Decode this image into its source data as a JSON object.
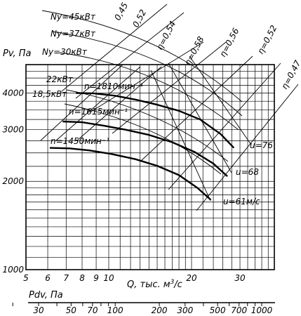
{
  "chart_data": {
    "type": "line",
    "title": "",
    "ylabel": "Pv, Па",
    "xlabel": "Q, тыс. м³/с",
    "xlabel_parts": {
      "main": "Q, тыс. м",
      "sup": "3",
      "tail": "/с"
    },
    "x_scale": "log",
    "y_scale": "log",
    "xlim": [
      5,
      40
    ],
    "ylim": [
      1000,
      5000
    ],
    "grid": true,
    "x_ticks": [
      5,
      6,
      7,
      8,
      9,
      10,
      20,
      30
    ],
    "y_ticks": [
      1000,
      2000,
      3000,
      4000
    ],
    "secondary_x_axis": {
      "label": "Pdv, Па",
      "ticks": [
        30,
        50,
        70,
        100,
        200,
        300,
        500,
        700,
        1000
      ]
    },
    "series": [
      {
        "name": "n=1810мин⁻¹",
        "x": [
          7.6,
          8.8,
          10.5,
          12.5,
          15.0,
          18.0,
          21.5,
          25.5,
          28.5
        ],
        "y": [
          4000,
          3990,
          3920,
          3800,
          3650,
          3480,
          3250,
          2900,
          2600
        ]
      },
      {
        "name": "n=1615мин⁻¹",
        "x": [
          6.8,
          8.0,
          9.5,
          11.5,
          14.0,
          17.0,
          20.5,
          24.0,
          27.0
        ],
        "y": [
          3200,
          3180,
          3100,
          3000,
          2880,
          2720,
          2520,
          2300,
          2080
        ]
      },
      {
        "name": "n=1450мин⁻¹",
        "x": [
          6.1,
          7.2,
          8.5,
          10.2,
          12.5,
          15.0,
          18.0,
          21.0,
          23.5
        ],
        "y": [
          2600,
          2590,
          2550,
          2480,
          2380,
          2260,
          2100,
          1900,
          1730
        ]
      }
    ],
    "efficiency_lines": [
      {
        "label": "0,45",
        "rotated": true
      },
      {
        "label": "0,52",
        "rotated": true
      },
      {
        "label": "η=0,54",
        "rotated": true
      },
      {
        "label": "η=0,58",
        "rotated": true
      },
      {
        "label": "η=0,56",
        "rotated": true
      },
      {
        "label": "η=0,52",
        "rotated": true
      },
      {
        "label": "η=0,47",
        "rotated": true
      }
    ],
    "power_lines": [
      "Ny=45кВт",
      "Ny=37кВт",
      "Ny=30кВт",
      "22кВт",
      "18,5кВт"
    ],
    "velocity_labels": [
      "u=76",
      "u=68",
      "u=61м/с"
    ]
  }
}
